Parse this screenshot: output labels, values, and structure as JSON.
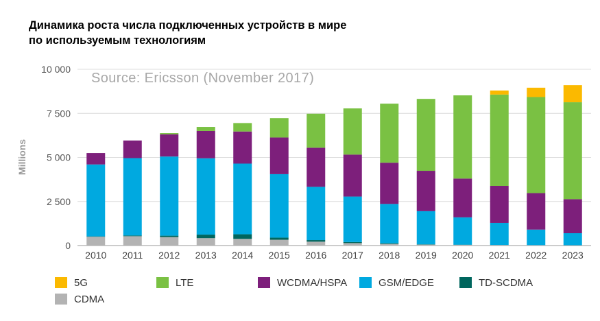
{
  "title_line1": "Динамика роста числа подключенных устройств в мире",
  "title_line2": "по используемым технологиям",
  "chart_data": {
    "type": "bar",
    "stacked": true,
    "source": "Source: Ericsson (November 2017)",
    "ylabel": "Millions",
    "xlabel": "",
    "ylim": [
      0,
      10000
    ],
    "ytick_values": [
      0,
      2500,
      5000,
      7500,
      10000
    ],
    "ytick_labels": [
      "0",
      "2 500",
      "5 000",
      "7 500",
      "10 000"
    ],
    "categories": [
      "2010",
      "2011",
      "2012",
      "2013",
      "2014",
      "2015",
      "2016",
      "2017",
      "2018",
      "2019",
      "2020",
      "2021",
      "2022",
      "2023"
    ],
    "series": [
      {
        "name": "CDMA",
        "color": "#b3b3b3",
        "values": [
          500,
          530,
          480,
          420,
          380,
          330,
          220,
          140,
          90,
          50,
          40,
          30,
          20,
          15
        ]
      },
      {
        "name": "TD-SCDMA",
        "color": "#00665e",
        "values": [
          20,
          40,
          80,
          200,
          260,
          120,
          90,
          60,
          40,
          20,
          10,
          5,
          5,
          5
        ]
      },
      {
        "name": "GSM/EDGE",
        "color": "#00a9e0",
        "values": [
          4080,
          4390,
          4490,
          4330,
          4010,
          3600,
          3020,
          2580,
          2230,
          1880,
          1550,
          1250,
          880,
          680
        ]
      },
      {
        "name": "WCDMA/HSPA",
        "color": "#7d1f7b",
        "values": [
          650,
          1000,
          1260,
          1550,
          1820,
          2080,
          2220,
          2380,
          2340,
          2290,
          2200,
          2100,
          2070,
          1930
        ]
      },
      {
        "name": "LTE",
        "color": "#7ac143",
        "values": [
          0,
          0,
          70,
          230,
          480,
          1100,
          1930,
          2620,
          3350,
          4080,
          4720,
          5180,
          5450,
          5500
        ]
      },
      {
        "name": "5G",
        "color": "#fbb900",
        "values": [
          0,
          0,
          0,
          0,
          0,
          0,
          0,
          0,
          0,
          0,
          0,
          230,
          530,
          970
        ]
      }
    ]
  },
  "legend": {
    "items": [
      {
        "label": "5G",
        "color": "#fbb900"
      },
      {
        "label": "LTE",
        "color": "#7ac143"
      },
      {
        "label": "WCDMA/HSPA",
        "color": "#7d1f7b"
      },
      {
        "label": "GSM/EDGE",
        "color": "#00a9e0"
      },
      {
        "label": "TD-SCDMA",
        "color": "#00665e"
      },
      {
        "label": "CDMA",
        "color": "#b3b3b3"
      }
    ]
  }
}
